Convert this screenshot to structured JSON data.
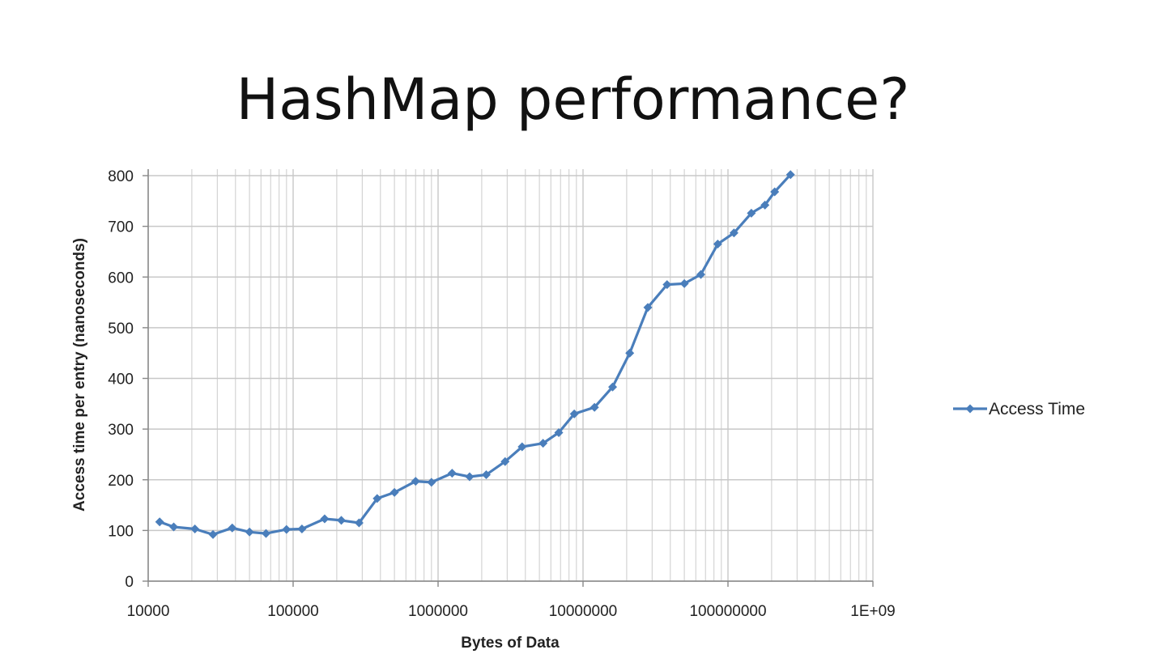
{
  "slide": {
    "title": "HashMap performance?"
  },
  "chart_data": {
    "type": "line",
    "title": "",
    "xlabel": "Bytes of Data",
    "ylabel": "Access time per entry (nanoseconds)",
    "x_scale": "log",
    "xlim": [
      10000,
      1000000000
    ],
    "ylim": [
      0,
      800
    ],
    "x_tick_labels": [
      "10000",
      "100000",
      "1000000",
      "10000000",
      "100000000",
      "1E+09"
    ],
    "y_tick_labels": [
      "0",
      "100",
      "200",
      "300",
      "400",
      "500",
      "600",
      "700",
      "800"
    ],
    "grid": true,
    "legend_position": "right",
    "series": [
      {
        "name": "Access Time",
        "color": "#4a7ebb",
        "marker": "diamond",
        "x": [
          12000,
          15000,
          21000,
          28000,
          38000,
          50000,
          65000,
          90000,
          115000,
          165000,
          215000,
          285000,
          380000,
          500000,
          700000,
          900000,
          1250000,
          1650000,
          2150000,
          2900000,
          3800000,
          5300000,
          6800000,
          8700000,
          12000000,
          16000000,
          21000000,
          28000000,
          38000000,
          50000000,
          65000000,
          85000000,
          110000000,
          145000000,
          180000000,
          210000000,
          270000000
        ],
        "y": [
          117,
          107,
          103,
          92,
          105,
          97,
          94,
          102,
          103,
          123,
          120,
          115,
          163,
          175,
          197,
          195,
          213,
          206,
          210,
          236,
          265,
          272,
          293,
          330,
          343,
          383,
          450,
          540,
          585,
          587,
          605,
          665,
          687,
          726,
          742,
          768,
          802
        ]
      }
    ]
  }
}
